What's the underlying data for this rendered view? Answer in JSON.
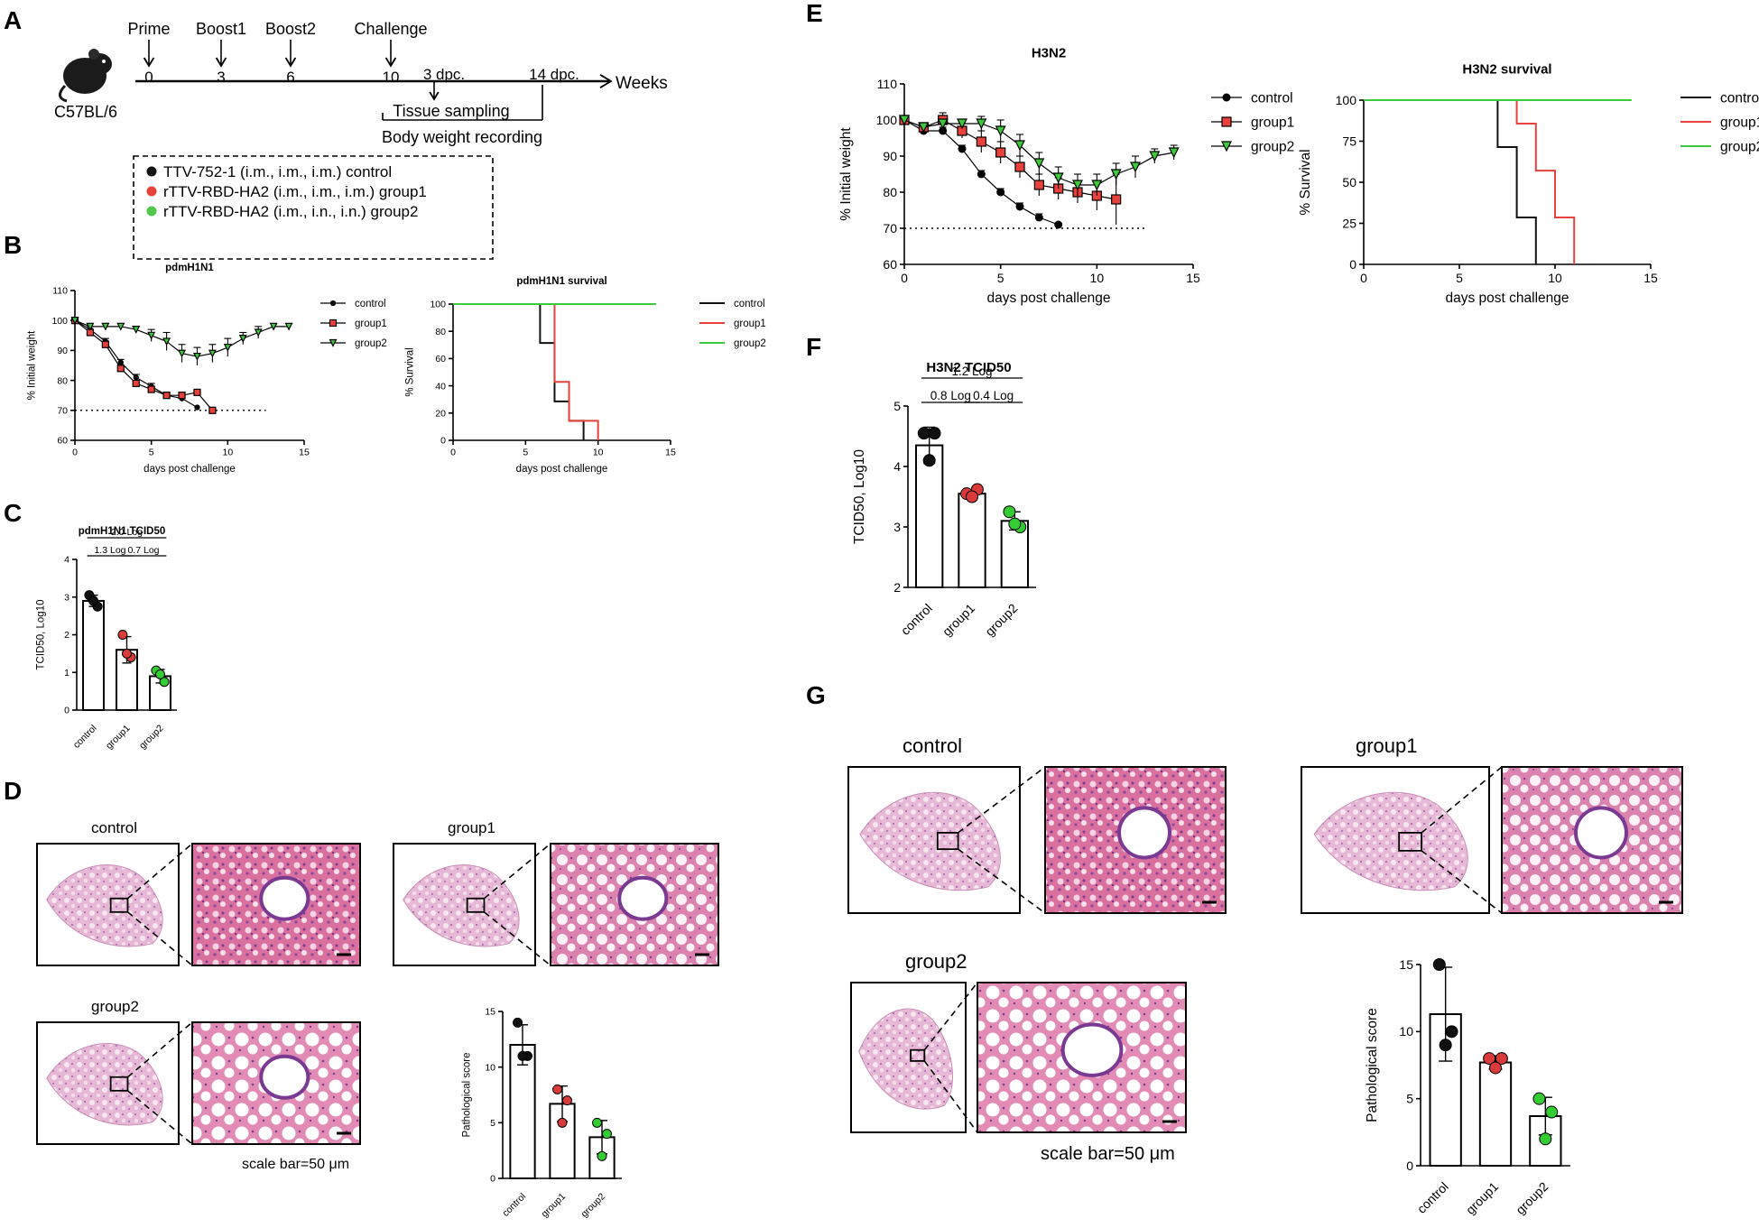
{
  "colors": {
    "control": "#111111",
    "group1": "#e8413b",
    "group2": "#3cc93c",
    "groupRed": "#d93a3a",
    "groupGreen": "#33cc33"
  },
  "panelA": {
    "letter": "A",
    "mouse": "C57BL/6",
    "events": [
      {
        "label": "Prime",
        "week": "0"
      },
      {
        "label": "Boost1",
        "week": "3"
      },
      {
        "label": "Boost2",
        "week": "6"
      },
      {
        "label": "Challenge",
        "week": "10"
      }
    ],
    "dpc3": "3 dpc.",
    "dpc14": "14 dpc.",
    "axisLabel": "Weeks",
    "tissue": "Tissue sampling",
    "bodyweight": "Body weight recording",
    "legend": [
      {
        "text": "TTV-752-1 (i.m., i.m., i.m.)  control",
        "color": "#111111"
      },
      {
        "text": "rTTV-RBD-HA2 (i.m., i.m., i.m.)  group1",
        "color": "#e8413b"
      },
      {
        "text": "rTTV-RBD-HA2 (i.m., i.n., i.n.)  group2",
        "color": "#52c84a"
      }
    ]
  },
  "letters": {
    "B": "B",
    "C": "C",
    "D": "D",
    "E": "E",
    "F": "F",
    "G": "G"
  },
  "chart_data": [
    {
      "id": "B-weight",
      "type": "line",
      "title": "pdmH1N1",
      "xlabel": "days post challenge",
      "ylabel": "% Initial weight",
      "xlim": [
        0,
        15
      ],
      "ylim": [
        60,
        110
      ],
      "xticks": [
        "0",
        "5",
        "10",
        "15"
      ],
      "yticks": [
        "60",
        "70",
        "80",
        "90",
        "100",
        "110"
      ],
      "threshold": 70,
      "series": [
        {
          "name": "control",
          "marker": "circle",
          "x": [
            0,
            1,
            2,
            3,
            4,
            5,
            6,
            7,
            8
          ],
          "y": [
            100,
            97,
            93,
            86,
            81,
            78,
            75,
            74,
            71
          ],
          "err": [
            0,
            1,
            1,
            1,
            1,
            1,
            1,
            1,
            0
          ]
        },
        {
          "name": "group1",
          "marker": "square",
          "x": [
            0,
            1,
            2,
            3,
            4,
            5,
            6,
            7,
            8,
            9
          ],
          "y": [
            100,
            96,
            92,
            84,
            79,
            77,
            75,
            75,
            76,
            70
          ],
          "err": [
            0,
            1,
            1,
            1,
            1,
            1,
            1,
            1,
            0,
            0
          ]
        },
        {
          "name": "group2",
          "marker": "triangle",
          "x": [
            0,
            1,
            2,
            3,
            4,
            5,
            6,
            7,
            8,
            9,
            10,
            11,
            12,
            13,
            14
          ],
          "y": [
            100,
            98,
            98,
            98,
            97,
            95,
            93,
            89,
            88,
            89,
            91,
            94,
            96,
            98,
            98
          ],
          "err": [
            0,
            1,
            1,
            1,
            1,
            2,
            3,
            3,
            3,
            3,
            3,
            2,
            2,
            1,
            1
          ]
        }
      ]
    },
    {
      "id": "B-survival",
      "type": "line",
      "title": "pdmH1N1 survival",
      "xlabel": "days post challenge",
      "ylabel": "% Survival",
      "xlim": [
        0,
        15
      ],
      "ylim": [
        0,
        100
      ],
      "xticks": [
        "0",
        "5",
        "10",
        "15"
      ],
      "yticks": [
        "0",
        "20",
        "40",
        "60",
        "80",
        "100"
      ],
      "series": [
        {
          "name": "control",
          "x": [
            0,
            6,
            6,
            7,
            7,
            8,
            8,
            9,
            9
          ],
          "y": [
            100,
            100,
            71.4,
            71.4,
            28.6,
            28.6,
            14.3,
            14.3,
            0
          ]
        },
        {
          "name": "group1",
          "x": [
            0,
            7,
            7,
            8,
            8,
            9,
            9,
            10,
            10
          ],
          "y": [
            100,
            100,
            42.9,
            42.9,
            14.3,
            14.3,
            14.3,
            14.3,
            0
          ]
        },
        {
          "name": "group2",
          "x": [
            0,
            14
          ],
          "y": [
            100,
            100
          ]
        }
      ]
    },
    {
      "id": "C-tcid50",
      "type": "bar",
      "title": "pdmH1N1 TCID50",
      "ylabel": "TCID50, Log10",
      "ylim": [
        0,
        4
      ],
      "yticks": [
        "0",
        "1",
        "2",
        "3",
        "4"
      ],
      "categories": [
        "control",
        "group1",
        "group2"
      ],
      "values": [
        2.9,
        1.6,
        0.9
      ],
      "err": [
        0.15,
        0.35,
        0.18
      ],
      "points": [
        [
          3.05,
          2.75,
          2.9
        ],
        [
          2.0,
          1.4,
          1.5
        ],
        [
          1.05,
          0.75,
          0.95
        ]
      ],
      "comparisons": [
        {
          "label": "2.0 Log",
          "from": 0,
          "to": 2,
          "level": 2
        },
        {
          "label": "1.3 Log",
          "from": 0,
          "to": 1,
          "level": 1
        },
        {
          "label": "0.7 Log",
          "from": 1,
          "to": 2,
          "level": 1
        }
      ]
    },
    {
      "id": "D-score",
      "type": "bar",
      "title": "",
      "ylabel": "Pathological score",
      "ylim": [
        0,
        15
      ],
      "yticks": [
        "0",
        "5",
        "10",
        "15"
      ],
      "categories": [
        "control",
        "group1",
        "group2"
      ],
      "values": [
        12,
        6.7,
        3.7
      ],
      "err": [
        1.8,
        1.6,
        1.5
      ],
      "points": [
        [
          14,
          11,
          11
        ],
        [
          8,
          7,
          5
        ],
        [
          5,
          4,
          2
        ]
      ]
    },
    {
      "id": "E-weight",
      "type": "line",
      "title": "H3N2",
      "xlabel": "days post challenge",
      "ylabel": "% Initial weight",
      "xlim": [
        0,
        15
      ],
      "ylim": [
        60,
        110
      ],
      "xticks": [
        "0",
        "5",
        "10",
        "15"
      ],
      "yticks": [
        "60",
        "70",
        "80",
        "90",
        "100",
        "110"
      ],
      "threshold": 70,
      "series": [
        {
          "name": "control",
          "marker": "circle",
          "x": [
            0,
            1,
            2,
            3,
            4,
            5,
            6,
            7,
            8
          ],
          "y": [
            100,
            97,
            97,
            92,
            85,
            80,
            76,
            73,
            71
          ],
          "err": [
            0,
            1,
            1,
            1,
            1,
            1,
            1,
            1,
            0
          ]
        },
        {
          "name": "group1",
          "marker": "square",
          "x": [
            0,
            1,
            2,
            3,
            4,
            5,
            6,
            7,
            8,
            9,
            10,
            11
          ],
          "y": [
            100,
            98,
            100,
            97,
            94,
            91,
            87,
            82,
            81,
            80,
            79,
            78
          ],
          "err": [
            0,
            1,
            2,
            2,
            3,
            3,
            3,
            3,
            3,
            3,
            4,
            7
          ]
        },
        {
          "name": "group2",
          "marker": "triangle",
          "x": [
            0,
            1,
            2,
            3,
            4,
            5,
            6,
            7,
            8,
            9,
            10,
            11,
            12,
            13,
            14
          ],
          "y": [
            100,
            98,
            99,
            99,
            99,
            97,
            93,
            88,
            84,
            82,
            82,
            85,
            87,
            90,
            91
          ],
          "err": [
            0,
            1,
            1,
            1,
            2,
            3,
            3,
            3,
            3,
            3,
            3,
            3,
            3,
            2,
            2
          ]
        }
      ]
    },
    {
      "id": "E-survival",
      "type": "line",
      "title": "H3N2 survival",
      "xlabel": "days post challenge",
      "ylabel": "% Survival",
      "xlim": [
        0,
        15
      ],
      "ylim": [
        0,
        100
      ],
      "xticks": [
        "0",
        "5",
        "10",
        "15"
      ],
      "yticks": [
        "0",
        "25",
        "50",
        "75",
        "100"
      ],
      "series": [
        {
          "name": "control",
          "x": [
            0,
            7,
            7,
            8,
            8,
            9,
            9
          ],
          "y": [
            100,
            100,
            71.4,
            71.4,
            28.6,
            28.6,
            0
          ]
        },
        {
          "name": "group1",
          "x": [
            0,
            8,
            8,
            9,
            9,
            10,
            10,
            11,
            11
          ],
          "y": [
            100,
            100,
            85.7,
            85.7,
            57.1,
            57.1,
            28.6,
            28.6,
            0
          ]
        },
        {
          "name": "group2",
          "x": [
            0,
            14
          ],
          "y": [
            100,
            100
          ]
        }
      ]
    },
    {
      "id": "F-tcid50",
      "type": "bar",
      "title": "H3N2 TCID50",
      "ylabel": "TCID50, Log10",
      "ylim": [
        2,
        5
      ],
      "yticks": [
        "2",
        "3",
        "4",
        "5"
      ],
      "categories": [
        "control",
        "group1",
        "group2"
      ],
      "values": [
        4.35,
        3.55,
        3.1
      ],
      "err": [
        0.3,
        0.06,
        0.15
      ],
      "points": [
        [
          4.55,
          4.55,
          4.1
        ],
        [
          3.55,
          3.62,
          3.5
        ],
        [
          3.25,
          3.0,
          3.05
        ]
      ],
      "comparisons": [
        {
          "label": "1.2 Log",
          "from": 0,
          "to": 2,
          "level": 2
        },
        {
          "label": "0.8 Log",
          "from": 0,
          "to": 1,
          "level": 1
        },
        {
          "label": "0.4 Log",
          "from": 1,
          "to": 2,
          "level": 1
        }
      ]
    },
    {
      "id": "G-score",
      "type": "bar",
      "title": "",
      "ylabel": "Pathological score",
      "ylim": [
        0,
        15
      ],
      "yticks": [
        "0",
        "5",
        "10",
        "15"
      ],
      "categories": [
        "control",
        "group1",
        "group2"
      ],
      "values": [
        11.3,
        7.7,
        3.7
      ],
      "err": [
        3.5,
        0.5,
        1.4
      ],
      "points": [
        [
          15,
          10,
          9
        ],
        [
          8,
          8,
          7.3
        ],
        [
          5,
          4,
          2
        ]
      ]
    }
  ],
  "histology": {
    "D": {
      "labels": [
        "control",
        "group1",
        "group2"
      ],
      "scale": "scale bar=50 μm"
    },
    "G": {
      "labels": [
        "control",
        "group1",
        "group2"
      ],
      "scale": "scale bar=50 μm"
    }
  }
}
